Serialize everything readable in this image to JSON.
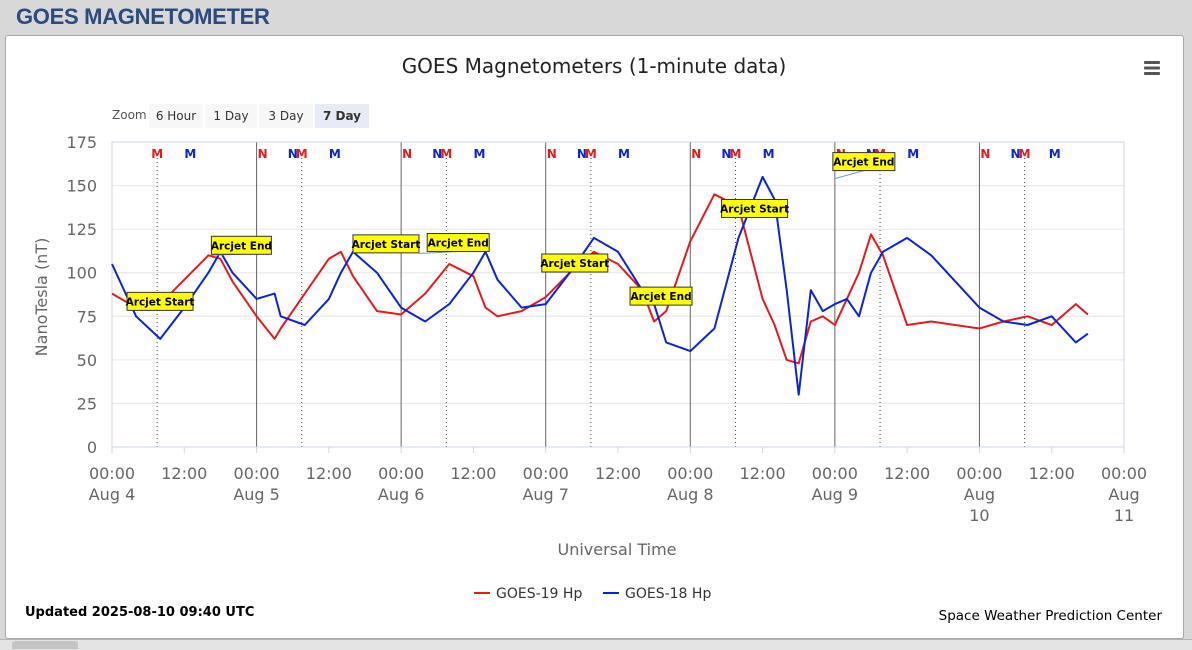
{
  "page": {
    "title": "GOES MAGNETOMETER"
  },
  "chart_data": {
    "type": "line",
    "title": "GOES Magnetometers (1-minute data)",
    "xlabel": "Universal Time",
    "ylabel": "NanoTesla (nT)",
    "xlim": [
      "2025-08-04 00:00",
      "2025-08-11 00:00"
    ],
    "ylim": [
      0,
      175
    ],
    "yticks": [
      "0",
      "25",
      "50",
      "75",
      "100",
      "125",
      "150",
      "175"
    ],
    "xticks": [
      {
        "time": "00:00",
        "date": "Aug 4"
      },
      {
        "time": "12:00",
        "date": ""
      },
      {
        "time": "00:00",
        "date": "Aug 5"
      },
      {
        "time": "12:00",
        "date": ""
      },
      {
        "time": "00:00",
        "date": "Aug 6"
      },
      {
        "time": "12:00",
        "date": ""
      },
      {
        "time": "00:00",
        "date": "Aug 7"
      },
      {
        "time": "12:00",
        "date": ""
      },
      {
        "time": "00:00",
        "date": "Aug 8"
      },
      {
        "time": "12:00",
        "date": ""
      },
      {
        "time": "00:00",
        "date": "Aug 9"
      },
      {
        "time": "12:00",
        "date": ""
      },
      {
        "time": "00:00",
        "date": "Aug 10"
      },
      {
        "time": "12:00",
        "date": ""
      },
      {
        "time": "00:00",
        "date": "Aug 11"
      }
    ],
    "x_hours": [
      0,
      4,
      8,
      12,
      16,
      18,
      20,
      24,
      27,
      28,
      32,
      36,
      38,
      40,
      44,
      48,
      52,
      56,
      60,
      62,
      64,
      68,
      72,
      76,
      80,
      84,
      88,
      90,
      92,
      96,
      100,
      104,
      108,
      110,
      112,
      114,
      116,
      118,
      120,
      122,
      124,
      126,
      128,
      132,
      136,
      140,
      144,
      148,
      152,
      156,
      160,
      162
    ],
    "series": [
      {
        "name": "GOES-19 Hp",
        "color": "#e41a1c",
        "values": [
          88,
          80,
          82,
          96,
          110,
          108,
          95,
          75,
          62,
          68,
          88,
          108,
          112,
          98,
          78,
          76,
          88,
          105,
          98,
          80,
          75,
          78,
          86,
          100,
          112,
          105,
          90,
          72,
          78,
          118,
          145,
          138,
          85,
          70,
          50,
          48,
          72,
          75,
          70,
          85,
          100,
          122,
          110,
          70,
          72,
          70,
          68,
          72,
          75,
          70,
          82,
          76
        ]
      },
      {
        "name": "GOES-18 Hp",
        "color": "#0b24d6",
        "values": [
          105,
          75,
          62,
          80,
          100,
          112,
          100,
          85,
          88,
          75,
          70,
          85,
          100,
          112,
          100,
          80,
          72,
          82,
          100,
          112,
          96,
          80,
          82,
          100,
          120,
          112,
          90,
          82,
          60,
          55,
          68,
          120,
          155,
          142,
          90,
          30,
          90,
          78,
          82,
          85,
          75,
          100,
          112,
          120,
          110,
          95,
          80,
          72,
          70,
          75,
          60,
          65
        ]
      }
    ],
    "legend": {
      "position": "bottom-center",
      "entries": [
        "GOES-19 Hp",
        "GOES-18 Hp"
      ]
    },
    "flags": [
      {
        "hour": 7.5,
        "label": "M",
        "color": "#e41a1c"
      },
      {
        "hour": 13.0,
        "label": "M",
        "color": "#0b24d6"
      },
      {
        "hour": 25.0,
        "label": "N",
        "color": "#e41a1c"
      },
      {
        "hour": 30.0,
        "label": "N",
        "color": "#0b24d6"
      },
      {
        "hour": 31.5,
        "label": "M",
        "color": "#e41a1c"
      },
      {
        "hour": 37.0,
        "label": "M",
        "color": "#0b24d6"
      },
      {
        "hour": 49.0,
        "label": "N",
        "color": "#e41a1c"
      },
      {
        "hour": 54.0,
        "label": "N",
        "color": "#0b24d6"
      },
      {
        "hour": 55.5,
        "label": "M",
        "color": "#e41a1c"
      },
      {
        "hour": 61.0,
        "label": "M",
        "color": "#0b24d6"
      },
      {
        "hour": 73.0,
        "label": "N",
        "color": "#e41a1c"
      },
      {
        "hour": 78.0,
        "label": "N",
        "color": "#0b24d6"
      },
      {
        "hour": 79.5,
        "label": "M",
        "color": "#e41a1c"
      },
      {
        "hour": 85.0,
        "label": "M",
        "color": "#0b24d6"
      },
      {
        "hour": 97.0,
        "label": "N",
        "color": "#e41a1c"
      },
      {
        "hour": 102.0,
        "label": "N",
        "color": "#0b24d6"
      },
      {
        "hour": 103.5,
        "label": "M",
        "color": "#e41a1c"
      },
      {
        "hour": 109.0,
        "label": "M",
        "color": "#0b24d6"
      },
      {
        "hour": 121.0,
        "label": "N",
        "color": "#e41a1c"
      },
      {
        "hour": 126.0,
        "label": "N",
        "color": "#0b24d6"
      },
      {
        "hour": 127.5,
        "label": "M",
        "color": "#e41a1c"
      },
      {
        "hour": 133.0,
        "label": "M",
        "color": "#0b24d6"
      },
      {
        "hour": 145.0,
        "label": "N",
        "color": "#e41a1c"
      },
      {
        "hour": 150.0,
        "label": "N",
        "color": "#0b24d6"
      },
      {
        "hour": 151.5,
        "label": "M",
        "color": "#e41a1c"
      },
      {
        "hour": 156.5,
        "label": "M",
        "color": "#0b24d6"
      }
    ],
    "annotations": [
      {
        "text": "Arcjet Start",
        "hour": 2.5,
        "value": 87
      },
      {
        "text": "Arcjet End",
        "hour": 16.5,
        "value": 110
      },
      {
        "text": "Arcjet Start",
        "hour": 41.0,
        "value": 120
      },
      {
        "text": "Arcjet End",
        "hour": 51.0,
        "value": 111
      },
      {
        "text": "Arcjet Start",
        "hour": 75.0,
        "value": 105
      },
      {
        "text": "Arcjet End",
        "hour": 86.0,
        "value": 86
      },
      {
        "text": "Arcjet Start",
        "hour": 108.5,
        "value": 138
      },
      {
        "text": "Arcjet End",
        "hour": 120.0,
        "value": 154
      }
    ]
  },
  "zoom": {
    "label": "Zoom",
    "buttons": [
      "6 Hour",
      "1 Day",
      "3 Day",
      "7 Day"
    ],
    "selected": "7 Day"
  },
  "footer": {
    "updated": "Updated 2025-08-10 09:40 UTC",
    "credit": "Space Weather Prediction Center"
  },
  "colors": {
    "header_title": "#2b4a7e",
    "annotation_fill": "#ffff00",
    "grid": "#e6e6e6"
  }
}
